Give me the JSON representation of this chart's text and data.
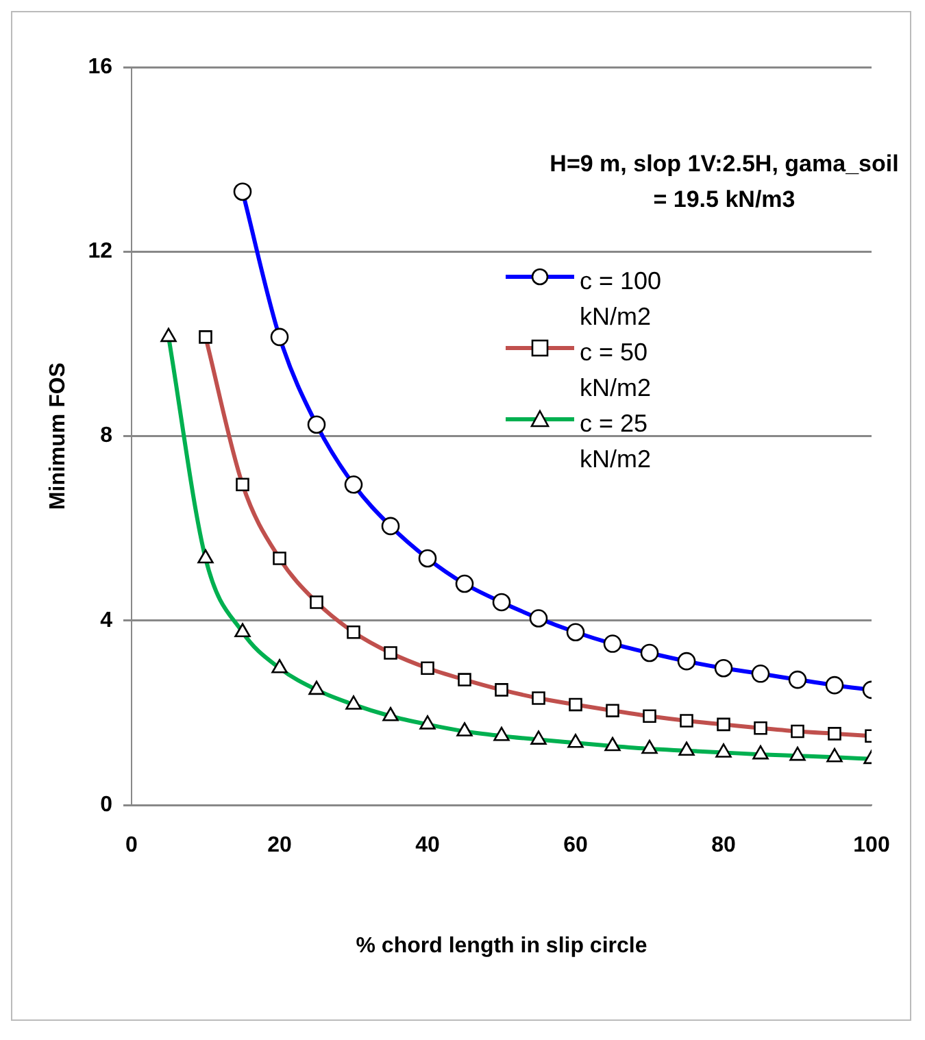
{
  "chart_data": {
    "type": "line",
    "xlabel": "% chord length in slip circle",
    "ylabel": "Minimum FOS",
    "annotations": [
      "H=9 m, slop 1V:2.5H, gama_soil = 19.5 kN/m3"
    ],
    "xlim": [
      0,
      100
    ],
    "xticks": [
      0,
      20,
      40,
      60,
      80,
      100
    ],
    "ylim": [
      0,
      16
    ],
    "yticks": [
      0,
      4,
      8,
      12,
      16
    ],
    "grid": "y",
    "legend": "right",
    "line_style": "solid",
    "series": [
      {
        "name": "c = 100 kN/m2",
        "color": "#0000ff",
        "marker": "circle",
        "x": [
          15,
          20,
          25,
          30,
          35,
          40,
          45,
          50,
          55,
          60,
          65,
          70,
          75,
          80,
          85,
          90,
          95,
          100
        ],
        "values": [
          13.3,
          10.15,
          8.25,
          6.95,
          6.05,
          5.35,
          4.8,
          4.4,
          4.05,
          3.75,
          3.5,
          3.3,
          3.12,
          2.97,
          2.85,
          2.72,
          2.6,
          2.5
        ]
      },
      {
        "name": "c = 50 kN/m2",
        "color": "#c0504d",
        "marker": "square",
        "x": [
          10,
          15,
          20,
          25,
          30,
          35,
          40,
          45,
          50,
          55,
          60,
          65,
          70,
          75,
          80,
          85,
          90,
          95,
          100
        ],
        "values": [
          10.15,
          6.95,
          5.35,
          4.4,
          3.75,
          3.3,
          2.97,
          2.72,
          2.5,
          2.32,
          2.18,
          2.05,
          1.93,
          1.83,
          1.75,
          1.67,
          1.6,
          1.55,
          1.5
        ]
      },
      {
        "name": "c = 25 kN/m2",
        "color": "#00b050",
        "marker": "triangle",
        "x": [
          5,
          10,
          15,
          20,
          25,
          30,
          35,
          40,
          45,
          50,
          55,
          60,
          65,
          70,
          75,
          80,
          85,
          90,
          95,
          100
        ],
        "values": [
          10.15,
          5.35,
          3.75,
          2.97,
          2.5,
          2.18,
          1.93,
          1.75,
          1.6,
          1.5,
          1.42,
          1.35,
          1.28,
          1.22,
          1.18,
          1.14,
          1.1,
          1.07,
          1.04,
          1.0
        ]
      }
    ]
  }
}
